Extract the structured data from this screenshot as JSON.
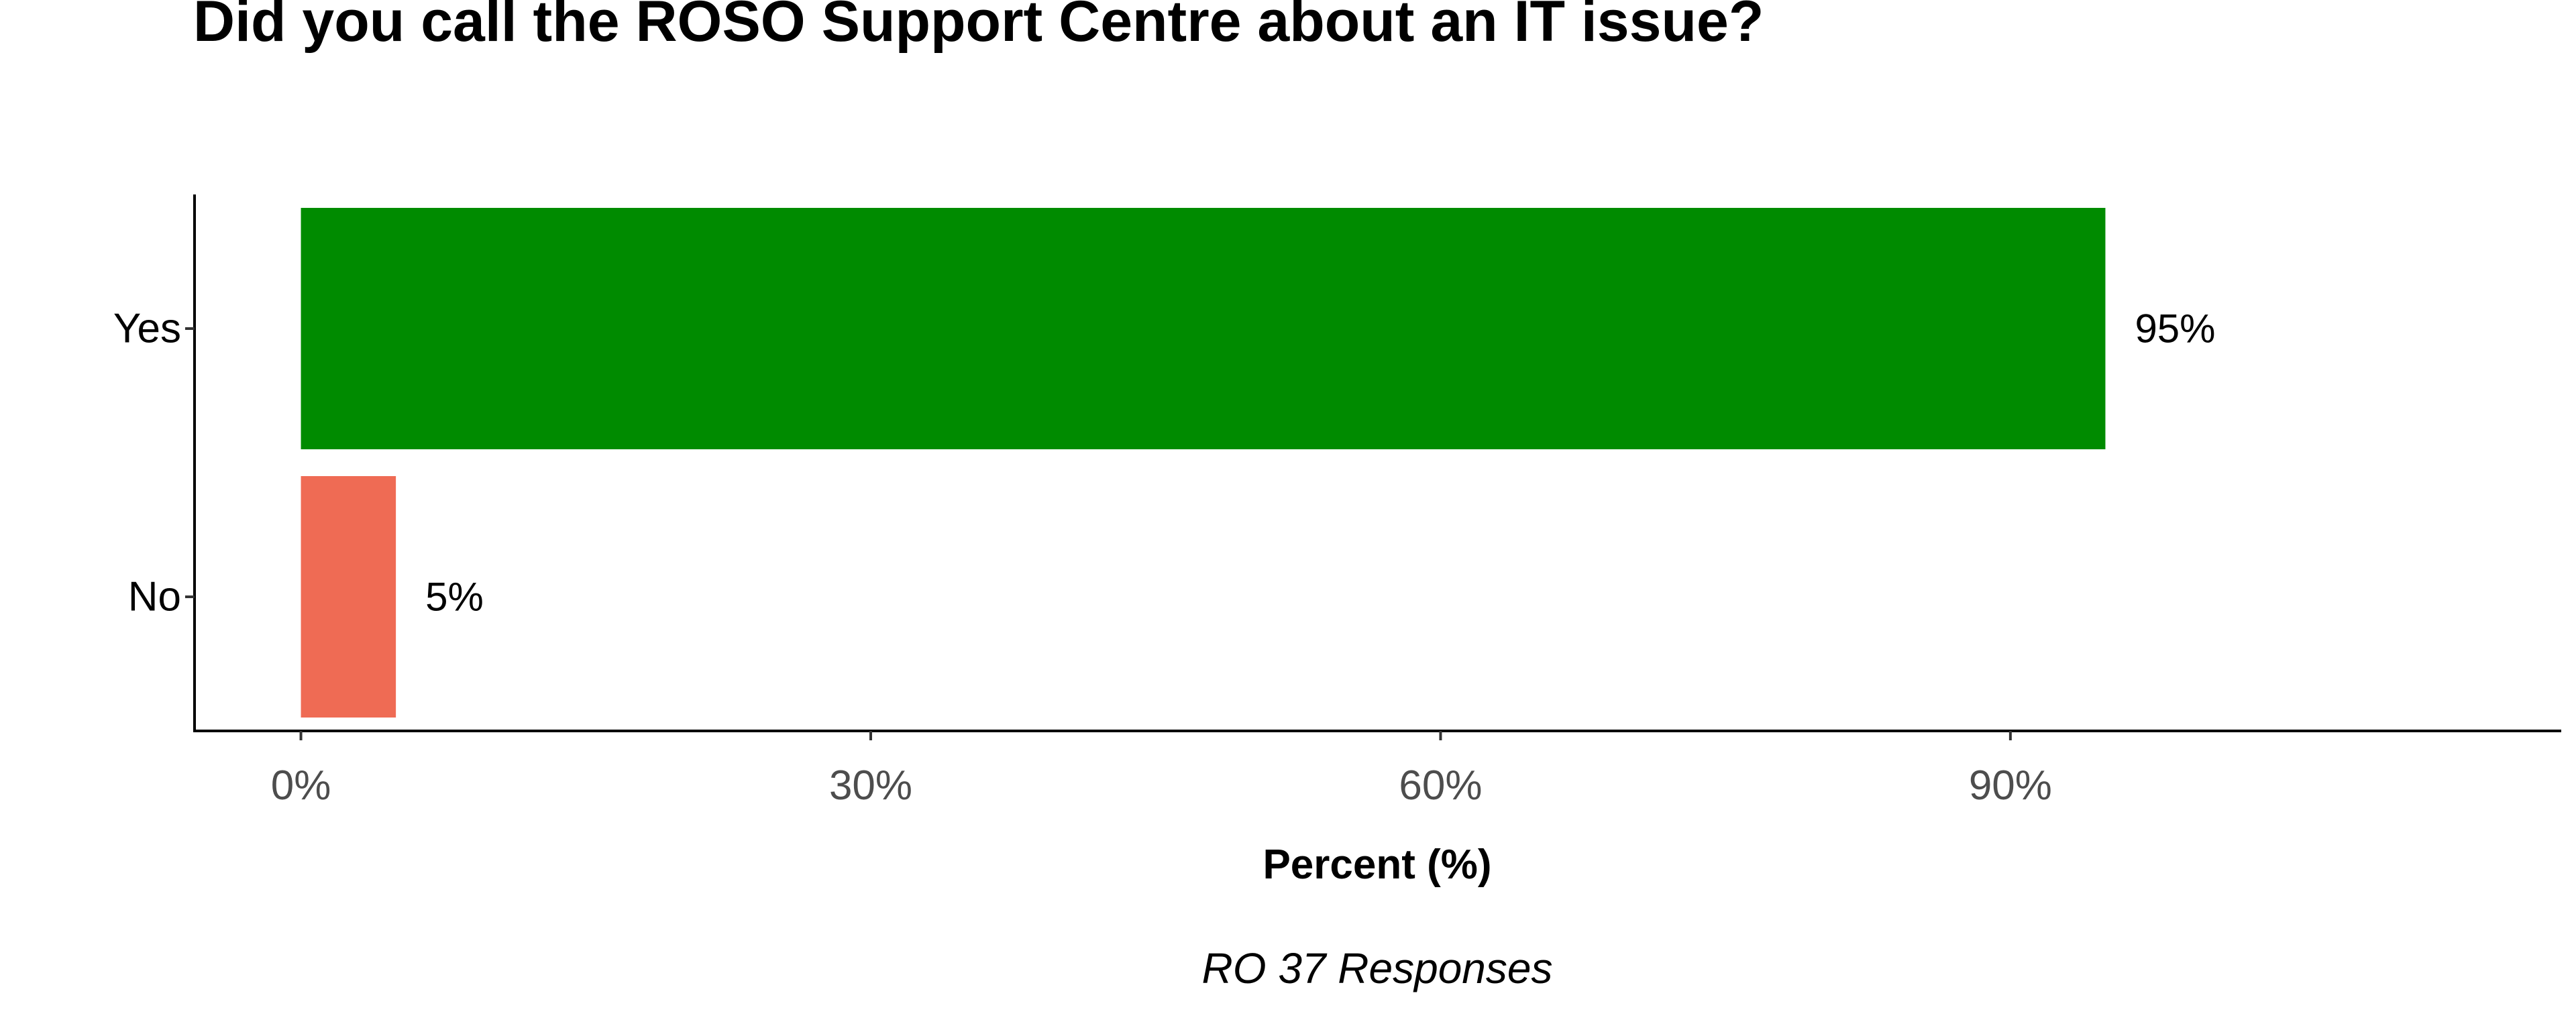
{
  "chart_data": {
    "type": "bar",
    "orientation": "horizontal",
    "title": "Did you call the ROSO Support Centre about an IT issue?",
    "categories": [
      "Yes",
      "No"
    ],
    "values": [
      95,
      5
    ],
    "data_labels": [
      "95%",
      "5%"
    ],
    "bar_colors": [
      "#008b00",
      "#ef6b54"
    ],
    "xlabel": "Percent (%)",
    "ylabel": "",
    "xlim": [
      -5.6,
      119
    ],
    "x_ticks": [
      0,
      30,
      60,
      90
    ],
    "x_tick_labels": [
      "0%",
      "30%",
      "60%",
      "90%"
    ],
    "caption": "RO 37 Responses",
    "grid": false,
    "legend": "none"
  }
}
